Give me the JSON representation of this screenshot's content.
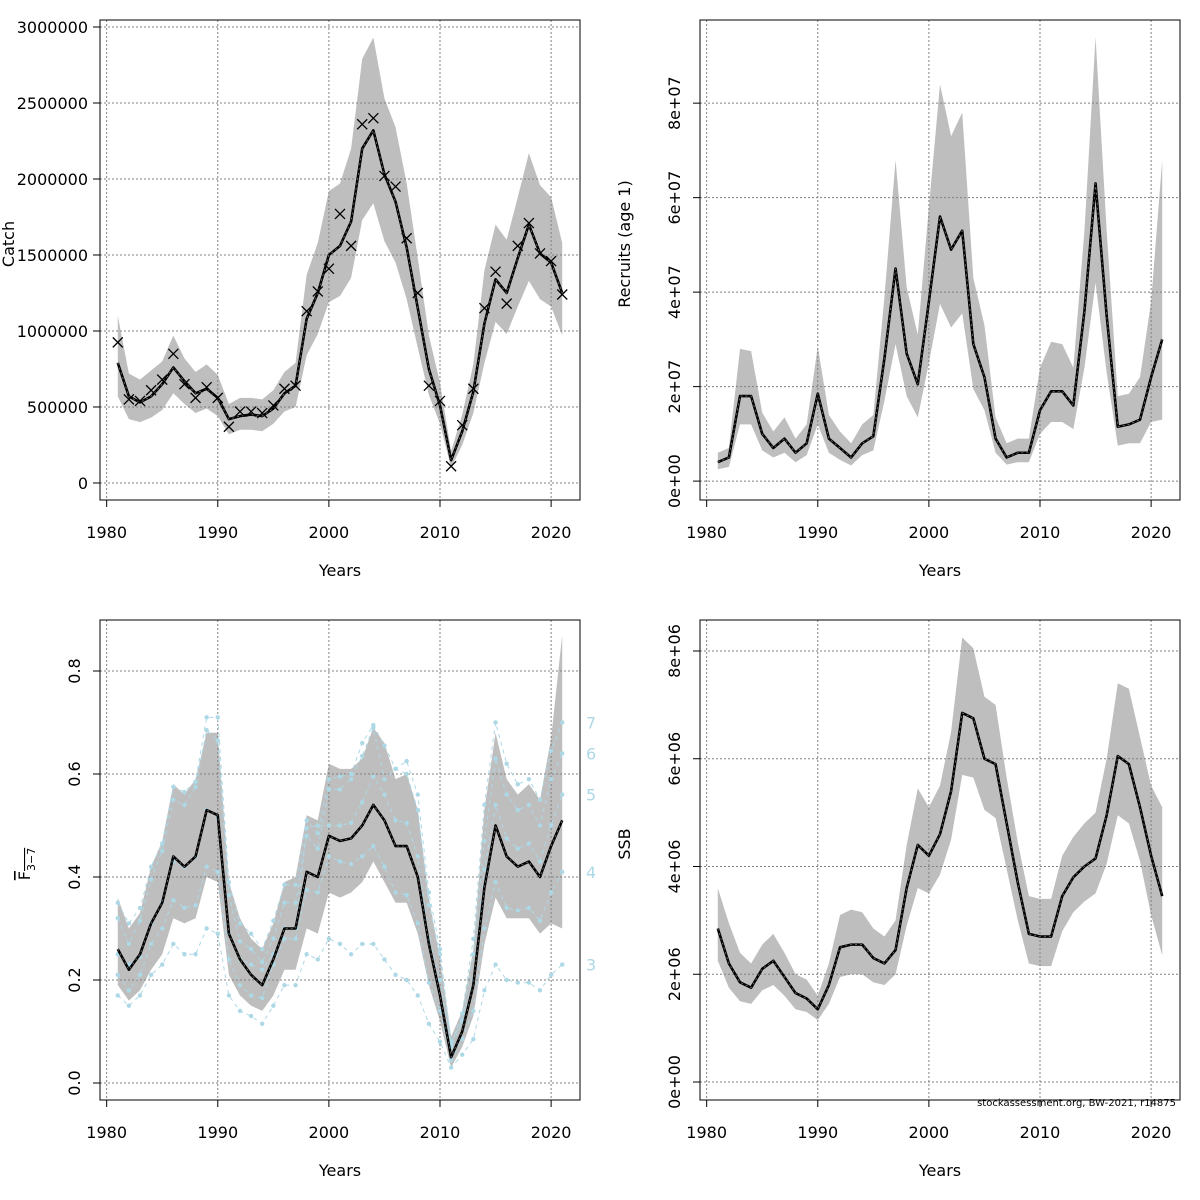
{
  "footer": "stockassessment.org, BW-2021, r14875",
  "colors": {
    "band": "#bebebe",
    "line": "#000000",
    "age_labels": "#add8e6",
    "grid": "#808080"
  },
  "chart_data": [
    {
      "id": "catch",
      "type": "line",
      "ylabel": "Catch",
      "xlabel": "Years",
      "xlim": [
        1979.4,
        2022.6
      ],
      "ylim": [
        -112000,
        3046000
      ],
      "xticks": [
        1980,
        1990,
        2000,
        2010,
        2020
      ],
      "yticks": [
        0,
        500000,
        1000000,
        1500000,
        2000000,
        2500000,
        3000000
      ],
      "ytick_labels": [
        "0",
        "500000",
        "1000000",
        "1500000",
        "2000000",
        "2500000",
        "3000000"
      ],
      "ytick_orientation": "horizontal",
      "grid": true,
      "years": [
        1981,
        1982,
        1983,
        1984,
        1985,
        1986,
        1987,
        1988,
        1989,
        1990,
        1991,
        1992,
        1993,
        1994,
        1995,
        1996,
        1997,
        1998,
        1999,
        2000,
        2001,
        2002,
        2003,
        2004,
        2005,
        2006,
        2007,
        2008,
        2009,
        2010,
        2011,
        2012,
        2013,
        2014,
        2015,
        2016,
        2017,
        2018,
        2019,
        2020,
        2021
      ],
      "estimate": [
        790000,
        570000,
        530000,
        570000,
        650000,
        760000,
        670000,
        590000,
        620000,
        560000,
        420000,
        440000,
        450000,
        440000,
        490000,
        590000,
        640000,
        1080000,
        1250000,
        1500000,
        1560000,
        1720000,
        2200000,
        2320000,
        2030000,
        1850000,
        1550000,
        1150000,
        750000,
        510000,
        150000,
        340000,
        600000,
        1050000,
        1340000,
        1250000,
        1480000,
        1700000,
        1510000,
        1450000,
        1250000
      ],
      "upper": [
        1100000,
        720000,
        680000,
        740000,
        800000,
        970000,
        820000,
        730000,
        780000,
        710000,
        520000,
        560000,
        560000,
        550000,
        610000,
        730000,
        790000,
        1370000,
        1580000,
        1920000,
        1970000,
        2200000,
        2790000,
        2930000,
        2530000,
        2340000,
        1970000,
        1480000,
        970000,
        660000,
        210000,
        450000,
        780000,
        1400000,
        1700000,
        1600000,
        1880000,
        2170000,
        1960000,
        1880000,
        1580000
      ],
      "lower": [
        570000,
        420000,
        400000,
        430000,
        480000,
        590000,
        520000,
        460000,
        490000,
        440000,
        320000,
        350000,
        350000,
        340000,
        390000,
        470000,
        500000,
        840000,
        980000,
        1190000,
        1230000,
        1350000,
        1730000,
        1840000,
        1590000,
        1450000,
        1210000,
        890000,
        580000,
        390000,
        100000,
        250000,
        460000,
        790000,
        1060000,
        980000,
        1160000,
        1330000,
        1210000,
        1160000,
        970000
      ],
      "observed": [
        925000,
        550000,
        540000,
        610000,
        680000,
        850000,
        650000,
        560000,
        630000,
        560000,
        370000,
        470000,
        470000,
        460000,
        510000,
        620000,
        640000,
        1130000,
        1260000,
        1410000,
        1770000,
        1560000,
        2360000,
        2400000,
        2020000,
        1950000,
        1610000,
        1250000,
        640000,
        540000,
        110000,
        380000,
        620000,
        1150000,
        1390000,
        1180000,
        1560000,
        1710000,
        1510000,
        1460000,
        1240000
      ]
    },
    {
      "id": "recruits",
      "type": "line",
      "ylabel": "Recruits (age 1)",
      "xlabel": "Years",
      "xlim": [
        1979.4,
        2022.6
      ],
      "ylim": [
        -4000000,
        97600000
      ],
      "xticks": [
        1980,
        1990,
        2000,
        2010,
        2020
      ],
      "yticks": [
        0,
        20000000,
        40000000,
        60000000,
        80000000
      ],
      "ytick_labels": [
        "0e+00",
        "2e+07",
        "4e+07",
        "6e+07",
        "8e+07"
      ],
      "ytick_orientation": "vertical",
      "grid": true,
      "years": [
        1981,
        1982,
        1983,
        1984,
        1985,
        1986,
        1987,
        1988,
        1989,
        1990,
        1991,
        1992,
        1993,
        1994,
        1995,
        1996,
        1997,
        1998,
        1999,
        2000,
        2001,
        2002,
        2003,
        2004,
        2005,
        2006,
        2007,
        2008,
        2009,
        2010,
        2011,
        2012,
        2013,
        2014,
        2015,
        2016,
        2017,
        2018,
        2019,
        2020,
        2021
      ],
      "estimate": [
        4000000,
        5000000,
        18000000,
        18000000,
        10000000,
        7000000,
        9000000,
        6000000,
        8000000,
        18500000,
        9000000,
        7000000,
        5000000,
        8000000,
        9500000,
        26000000,
        45000000,
        27000000,
        20500000,
        38000000,
        56000000,
        49000000,
        53000000,
        29000000,
        22000000,
        9000000,
        5000000,
        6000000,
        6000000,
        15000000,
        19000000,
        19000000,
        16000000,
        36000000,
        63000000,
        35000000,
        11500000,
        12000000,
        13000000,
        22000000,
        30000000
      ],
      "upper": [
        6000000,
        7000000,
        28000000,
        27500000,
        14500000,
        10500000,
        13500000,
        9000000,
        12000000,
        28500000,
        14000000,
        10500000,
        8000000,
        12000000,
        14000000,
        39000000,
        68000000,
        41000000,
        31000000,
        58000000,
        84000000,
        73000000,
        78000000,
        43000000,
        33000000,
        13500000,
        8000000,
        9000000,
        9000000,
        24000000,
        29500000,
        29000000,
        24000000,
        53000000,
        94000000,
        53000000,
        18000000,
        18500000,
        22000000,
        38000000,
        68000000
      ],
      "lower": [
        2500000,
        3000000,
        12000000,
        12000000,
        6500000,
        5000000,
        6000000,
        4000000,
        5500000,
        12000000,
        6000000,
        4500000,
        3300000,
        5500000,
        6500000,
        17000000,
        29000000,
        18000000,
        13500000,
        25000000,
        37500000,
        32500000,
        35500000,
        19500000,
        15000000,
        6000000,
        3500000,
        4000000,
        4000000,
        10000000,
        12500000,
        12500000,
        11000000,
        24000000,
        42000000,
        23000000,
        7500000,
        8000000,
        8000000,
        12500000,
        13000000
      ]
    },
    {
      "id": "fbar",
      "type": "line",
      "ylabel": "F",
      "ylabel_subscript": "3−7",
      "xlabel": "Years",
      "xlim": [
        1979.4,
        2022.6
      ],
      "ylim": [
        -0.033,
        0.899
      ],
      "xticks": [
        1980,
        1990,
        2000,
        2010,
        2020
      ],
      "yticks": [
        0,
        0.2,
        0.4,
        0.6,
        0.8
      ],
      "ytick_labels": [
        "0.0",
        "0.2",
        "0.4",
        "0.6",
        "0.8"
      ],
      "ytick_orientation": "vertical",
      "grid": true,
      "years": [
        1981,
        1982,
        1983,
        1984,
        1985,
        1986,
        1987,
        1988,
        1989,
        1990,
        1991,
        1992,
        1993,
        1994,
        1995,
        1996,
        1997,
        1998,
        1999,
        2000,
        2001,
        2002,
        2003,
        2004,
        2005,
        2006,
        2007,
        2008,
        2009,
        2010,
        2011,
        2012,
        2013,
        2014,
        2015,
        2016,
        2017,
        2018,
        2019,
        2020,
        2021
      ],
      "estimate": [
        0.26,
        0.22,
        0.25,
        0.31,
        0.35,
        0.44,
        0.42,
        0.44,
        0.53,
        0.52,
        0.29,
        0.24,
        0.21,
        0.19,
        0.24,
        0.3,
        0.3,
        0.41,
        0.4,
        0.48,
        0.47,
        0.475,
        0.5,
        0.54,
        0.51,
        0.46,
        0.46,
        0.4,
        0.27,
        0.17,
        0.05,
        0.1,
        0.19,
        0.38,
        0.5,
        0.44,
        0.42,
        0.43,
        0.4,
        0.46,
        0.51
      ],
      "upper": [
        0.36,
        0.3,
        0.33,
        0.42,
        0.47,
        0.58,
        0.56,
        0.59,
        0.68,
        0.68,
        0.39,
        0.32,
        0.28,
        0.26,
        0.31,
        0.39,
        0.4,
        0.52,
        0.51,
        0.62,
        0.61,
        0.61,
        0.63,
        0.69,
        0.66,
        0.59,
        0.6,
        0.53,
        0.36,
        0.24,
        0.09,
        0.14,
        0.26,
        0.53,
        0.68,
        0.59,
        0.56,
        0.58,
        0.55,
        0.67,
        0.87
      ],
      "lower": [
        0.19,
        0.16,
        0.18,
        0.22,
        0.25,
        0.32,
        0.31,
        0.32,
        0.4,
        0.39,
        0.21,
        0.17,
        0.15,
        0.14,
        0.17,
        0.22,
        0.22,
        0.3,
        0.29,
        0.37,
        0.36,
        0.37,
        0.39,
        0.43,
        0.39,
        0.35,
        0.35,
        0.29,
        0.19,
        0.12,
        0.03,
        0.07,
        0.13,
        0.27,
        0.36,
        0.32,
        0.32,
        0.32,
        0.29,
        0.31,
        0.3
      ],
      "ages": [
        {
          "age": "3",
          "values": [
            0.17,
            0.15,
            0.17,
            0.21,
            0.23,
            0.27,
            0.25,
            0.25,
            0.3,
            0.29,
            0.17,
            0.14,
            0.13,
            0.115,
            0.15,
            0.19,
            0.19,
            0.25,
            0.24,
            0.28,
            0.27,
            0.25,
            0.27,
            0.27,
            0.24,
            0.21,
            0.2,
            0.17,
            0.115,
            0.08,
            0.03,
            0.055,
            0.085,
            0.18,
            0.23,
            0.2,
            0.195,
            0.195,
            0.18,
            0.21,
            0.23
          ]
        },
        {
          "age": "4",
          "values": [
            0.21,
            0.18,
            0.21,
            0.27,
            0.3,
            0.355,
            0.34,
            0.345,
            0.42,
            0.41,
            0.24,
            0.19,
            0.17,
            0.165,
            0.23,
            0.28,
            0.28,
            0.375,
            0.37,
            0.44,
            0.43,
            0.425,
            0.44,
            0.46,
            0.42,
            0.37,
            0.365,
            0.31,
            0.195,
            0.14,
            0.045,
            0.085,
            0.14,
            0.3,
            0.39,
            0.34,
            0.335,
            0.34,
            0.315,
            0.37,
            0.41
          ]
        },
        {
          "age": "5",
          "values": [
            0.25,
            0.23,
            0.245,
            0.31,
            0.35,
            0.43,
            0.42,
            0.44,
            0.53,
            0.515,
            0.29,
            0.24,
            0.23,
            0.22,
            0.25,
            0.3,
            0.3,
            0.495,
            0.5,
            0.5,
            0.5,
            0.505,
            0.545,
            0.595,
            0.56,
            0.51,
            0.505,
            0.44,
            0.28,
            0.2,
            0.07,
            0.12,
            0.2,
            0.415,
            0.54,
            0.475,
            0.455,
            0.465,
            0.43,
            0.5,
            0.56
          ]
        },
        {
          "age": "6",
          "values": [
            0.32,
            0.27,
            0.315,
            0.395,
            0.45,
            0.55,
            0.54,
            0.575,
            0.685,
            0.665,
            0.365,
            0.275,
            0.26,
            0.235,
            0.28,
            0.35,
            0.35,
            0.48,
            0.455,
            0.57,
            0.57,
            0.59,
            0.635,
            0.69,
            0.59,
            0.61,
            0.6,
            0.53,
            0.345,
            0.25,
            0.08,
            0.12,
            0.25,
            0.47,
            0.63,
            0.56,
            0.53,
            0.54,
            0.5,
            0.59,
            0.64
          ]
        },
        {
          "age": "7",
          "values": [
            0.35,
            0.31,
            0.34,
            0.42,
            0.465,
            0.575,
            0.565,
            0.585,
            0.71,
            0.71,
            0.39,
            0.31,
            0.29,
            0.26,
            0.315,
            0.385,
            0.385,
            0.51,
            0.485,
            0.59,
            0.595,
            0.6,
            0.66,
            0.695,
            0.655,
            0.61,
            0.625,
            0.56,
            0.37,
            0.26,
            0.075,
            0.135,
            0.28,
            0.54,
            0.7,
            0.62,
            0.58,
            0.59,
            0.55,
            0.645,
            0.7
          ]
        }
      ]
    },
    {
      "id": "ssb",
      "type": "line",
      "ylabel": "SSB",
      "xlabel": "Years",
      "xlim": [
        1979.4,
        2022.6
      ],
      "ylim": [
        -334000,
        8575000
      ],
      "xticks": [
        1980,
        1990,
        2000,
        2010,
        2020
      ],
      "yticks": [
        0,
        2000000,
        4000000,
        6000000,
        8000000
      ],
      "ytick_labels": [
        "0e+00",
        "2e+06",
        "4e+06",
        "6e+06",
        "8e+06"
      ],
      "ytick_orientation": "vertical",
      "grid": true,
      "years": [
        1981,
        1982,
        1983,
        1984,
        1985,
        1986,
        1987,
        1988,
        1989,
        1990,
        1991,
        1992,
        1993,
        1994,
        1995,
        1996,
        1997,
        1998,
        1999,
        2000,
        2001,
        2002,
        2003,
        2004,
        2005,
        2006,
        2007,
        2008,
        2009,
        2010,
        2011,
        2012,
        2013,
        2014,
        2015,
        2016,
        2017,
        2018,
        2019,
        2020,
        2021
      ],
      "estimate": [
        2850000,
        2200000,
        1850000,
        1750000,
        2100000,
        2250000,
        1950000,
        1650000,
        1550000,
        1350000,
        1800000,
        2500000,
        2550000,
        2550000,
        2300000,
        2200000,
        2450000,
        3600000,
        4400000,
        4200000,
        4600000,
        5400000,
        6850000,
        6750000,
        6000000,
        5900000,
        4800000,
        3700000,
        2750000,
        2700000,
        2700000,
        3450000,
        3800000,
        4000000,
        4150000,
        4950000,
        6050000,
        5900000,
        5100000,
        4200000,
        3450000
      ],
      "upper": [
        3600000,
        2950000,
        2400000,
        2200000,
        2550000,
        2750000,
        2400000,
        2000000,
        1900000,
        1600000,
        2200000,
        3100000,
        3200000,
        3150000,
        2850000,
        2700000,
        3000000,
        4400000,
        5450000,
        5100000,
        5500000,
        6500000,
        8250000,
        8050000,
        7150000,
        7000000,
        5650000,
        4450000,
        3450000,
        3400000,
        3400000,
        4200000,
        4550000,
        4800000,
        5000000,
        6000000,
        7400000,
        7300000,
        6400000,
        5500000,
        5100000
      ],
      "lower": [
        2250000,
        1750000,
        1500000,
        1450000,
        1700000,
        1800000,
        1600000,
        1350000,
        1300000,
        1150000,
        1450000,
        1950000,
        2000000,
        2000000,
        1850000,
        1800000,
        2000000,
        2900000,
        3600000,
        3500000,
        3850000,
        4500000,
        5700000,
        5650000,
        5050000,
        4900000,
        3950000,
        3000000,
        2200000,
        2150000,
        2150000,
        2800000,
        3150000,
        3350000,
        3500000,
        4050000,
        4950000,
        4800000,
        4100000,
        3100000,
        2350000
      ]
    }
  ]
}
